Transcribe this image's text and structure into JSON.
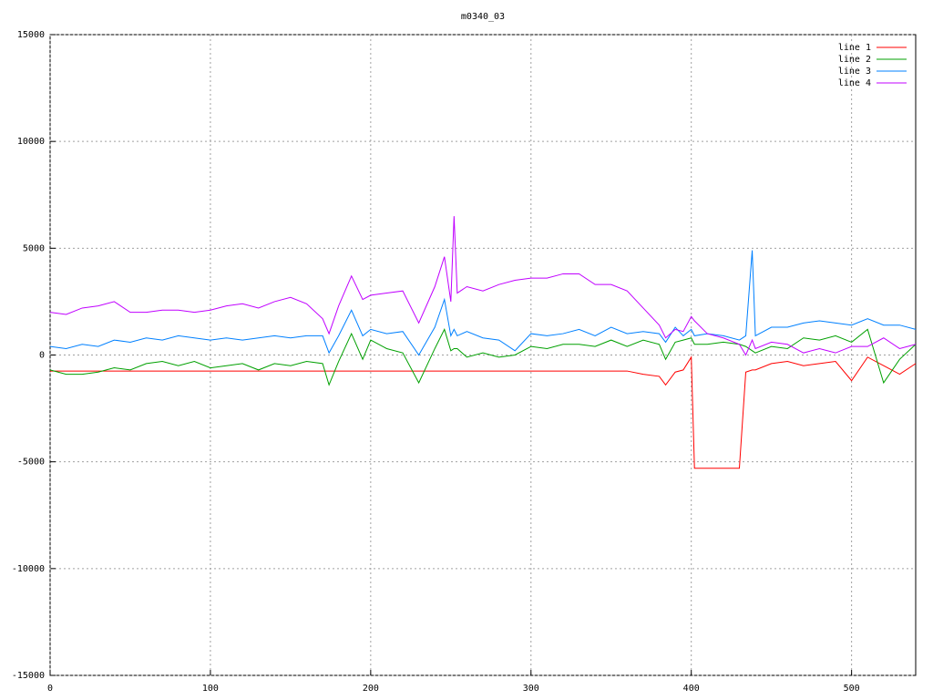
{
  "chart_data": {
    "type": "line",
    "title": "m0340_03",
    "x": [
      0,
      10,
      20,
      30,
      40,
      50,
      60,
      70,
      80,
      90,
      100,
      110,
      120,
      130,
      140,
      150,
      160,
      170,
      174,
      180,
      188,
      195,
      200,
      210,
      220,
      230,
      240,
      246,
      250,
      252,
      254,
      260,
      270,
      280,
      290,
      300,
      310,
      320,
      330,
      340,
      350,
      360,
      370,
      380,
      384,
      390,
      395,
      400,
      402,
      410,
      420,
      430,
      434,
      438,
      440,
      450,
      460,
      470,
      480,
      490,
      500,
      510,
      520,
      530,
      540
    ],
    "series": [
      {
        "name": "line 1",
        "color": "#ff0000",
        "values": [
          -750,
          -750,
          -750,
          -750,
          -750,
          -750,
          -750,
          -750,
          -750,
          -750,
          -750,
          -750,
          -750,
          -750,
          -750,
          -750,
          -750,
          -750,
          -750,
          -750,
          -750,
          -750,
          -750,
          -750,
          -750,
          -750,
          -750,
          -750,
          -750,
          -750,
          -750,
          -750,
          -750,
          -750,
          -750,
          -750,
          -750,
          -750,
          -750,
          -750,
          -750,
          -750,
          -900,
          -1000,
          -1400,
          -800,
          -700,
          -100,
          -5300,
          -5300,
          -5300,
          -5300,
          -800,
          -700,
          -700,
          -400,
          -300,
          -500,
          -400,
          -300,
          -1200,
          -100,
          -500,
          -900,
          -400
        ]
      },
      {
        "name": "line 2",
        "color": "#00a000",
        "values": [
          -700,
          -900,
          -900,
          -800,
          -600,
          -700,
          -400,
          -300,
          -500,
          -300,
          -600,
          -500,
          -400,
          -700,
          -400,
          -500,
          -300,
          -400,
          -1400,
          -300,
          1000,
          -200,
          700,
          300,
          100,
          -1300,
          300,
          1200,
          200,
          300,
          300,
          -100,
          100,
          -100,
          0,
          400,
          300,
          500,
          500,
          400,
          700,
          400,
          700,
          500,
          -200,
          600,
          700,
          800,
          500,
          500,
          600,
          500,
          400,
          200,
          100,
          400,
          300,
          800,
          700,
          900,
          600,
          1200,
          -1300,
          -200,
          500
        ]
      },
      {
        "name": "line 3",
        "color": "#0080ff",
        "values": [
          400,
          300,
          500,
          400,
          700,
          600,
          800,
          700,
          900,
          800,
          700,
          800,
          700,
          800,
          900,
          800,
          900,
          900,
          100,
          900,
          2100,
          900,
          1200,
          1000,
          1100,
          0,
          1300,
          2600,
          900,
          1200,
          900,
          1100,
          800,
          700,
          200,
          1000,
          900,
          1000,
          1200,
          900,
          1300,
          1000,
          1100,
          1000,
          600,
          1300,
          900,
          1200,
          900,
          1000,
          900,
          700,
          900,
          4900,
          900,
          1300,
          1300,
          1500,
          1600,
          1500,
          1400,
          1700,
          1400,
          1400,
          1200
        ]
      },
      {
        "name": "line 4",
        "color": "#c000ff",
        "values": [
          2000,
          1900,
          2200,
          2300,
          2500,
          2000,
          2000,
          2100,
          2100,
          2000,
          2100,
          2300,
          2400,
          2200,
          2500,
          2700,
          2400,
          1700,
          1000,
          2300,
          3700,
          2600,
          2800,
          2900,
          3000,
          1500,
          3200,
          4600,
          2500,
          6500,
          2900,
          3200,
          3000,
          3300,
          3500,
          3600,
          3600,
          3800,
          3800,
          3300,
          3300,
          3000,
          2200,
          1400,
          800,
          1200,
          1100,
          1800,
          1600,
          1000,
          800,
          500,
          0,
          700,
          300,
          600,
          500,
          100,
          300,
          100,
          400,
          400,
          800,
          300,
          500
        ]
      }
    ],
    "xlim": [
      0,
      540
    ],
    "xticks": [
      0,
      100,
      200,
      300,
      400,
      500
    ],
    "ylim": [
      -15000,
      15000
    ],
    "yticks": [
      -15000,
      -10000,
      -5000,
      0,
      5000,
      10000,
      15000
    ],
    "grid": true,
    "legend": "top-right"
  }
}
